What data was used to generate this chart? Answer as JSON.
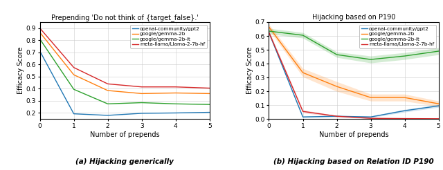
{
  "left": {
    "title": "Prepending 'Do not think of {target_false}.'",
    "xlabel": "Number of prepends",
    "ylabel": "Efficacy Score",
    "xlim": [
      0,
      5
    ],
    "ylim": [
      0.15,
      0.95
    ],
    "yticks": [
      0.2,
      0.3,
      0.4,
      0.5,
      0.6,
      0.7,
      0.8,
      0.9
    ],
    "xticks": [
      0,
      1,
      2,
      3,
      4,
      5
    ],
    "series": [
      {
        "label": "openai-community/gpt2",
        "color": "#1f77b4",
        "x": [
          0,
          1,
          2,
          3,
          4,
          5
        ],
        "y": [
          0.71,
          0.193,
          0.18,
          0.197,
          0.2,
          0.205
        ],
        "y_lower": [
          0.71,
          0.193,
          0.18,
          0.197,
          0.2,
          0.205
        ],
        "y_upper": [
          0.71,
          0.193,
          0.18,
          0.197,
          0.2,
          0.205
        ],
        "has_band": false
      },
      {
        "label": "google/gemma-2b",
        "color": "#ff7f0e",
        "x": [
          0,
          1,
          2,
          3,
          4,
          5
        ],
        "y": [
          0.865,
          0.515,
          0.385,
          0.36,
          0.365,
          0.36
        ],
        "y_lower": [
          0.865,
          0.515,
          0.385,
          0.36,
          0.365,
          0.36
        ],
        "y_upper": [
          0.865,
          0.515,
          0.385,
          0.36,
          0.365,
          0.36
        ],
        "has_band": false
      },
      {
        "label": "google/gemma-2b-it",
        "color": "#2ca02c",
        "x": [
          0,
          1,
          2,
          3,
          4,
          5
        ],
        "y": [
          0.81,
          0.395,
          0.275,
          0.285,
          0.275,
          0.27
        ],
        "y_lower": [
          0.81,
          0.395,
          0.275,
          0.285,
          0.275,
          0.27
        ],
        "y_upper": [
          0.81,
          0.395,
          0.275,
          0.285,
          0.275,
          0.27
        ],
        "has_band": false
      },
      {
        "label": "meta-llama/Llama-2-7b-hf",
        "color": "#d62728",
        "x": [
          0,
          1,
          2,
          3,
          4,
          5
        ],
        "y": [
          0.9,
          0.575,
          0.44,
          0.415,
          0.415,
          0.405
        ],
        "y_lower": [
          0.9,
          0.575,
          0.44,
          0.415,
          0.415,
          0.405
        ],
        "y_upper": [
          0.9,
          0.575,
          0.44,
          0.415,
          0.415,
          0.405
        ],
        "has_band": false
      }
    ],
    "caption": "(a) Hijacking generically"
  },
  "right": {
    "title": "Hijacking based on P190",
    "xlabel": "Number of prepends",
    "ylabel": "Efficacy Score",
    "xlim": [
      0,
      5
    ],
    "ylim": [
      0.0,
      0.7
    ],
    "yticks": [
      0.0,
      0.1,
      0.2,
      0.3,
      0.4,
      0.5,
      0.6,
      0.7
    ],
    "xticks": [
      0,
      1,
      2,
      3,
      4,
      5
    ],
    "series": [
      {
        "label": "openai-community/gpt2",
        "color": "#1f77b4",
        "x": [
          0,
          1,
          2,
          3,
          4,
          5
        ],
        "y": [
          0.625,
          0.015,
          0.02,
          0.015,
          0.06,
          0.095
        ],
        "y_lower": [
          0.615,
          0.01,
          0.015,
          0.01,
          0.05,
          0.085
        ],
        "y_upper": [
          0.635,
          0.02,
          0.025,
          0.02,
          0.07,
          0.105
        ],
        "has_band": true
      },
      {
        "label": "google/gemma-2b",
        "color": "#ff7f0e",
        "x": [
          0,
          1,
          2,
          3,
          4,
          5
        ],
        "y": [
          0.665,
          0.335,
          0.235,
          0.155,
          0.155,
          0.11
        ],
        "y_lower": [
          0.645,
          0.305,
          0.2,
          0.13,
          0.13,
          0.09
        ],
        "y_upper": [
          0.685,
          0.365,
          0.27,
          0.18,
          0.18,
          0.13
        ],
        "has_band": true
      },
      {
        "label": "google/gemma-2b-it",
        "color": "#2ca02c",
        "x": [
          0,
          1,
          2,
          3,
          4,
          5
        ],
        "y": [
          0.635,
          0.605,
          0.465,
          0.43,
          0.455,
          0.49
        ],
        "y_lower": [
          0.615,
          0.585,
          0.445,
          0.405,
          0.43,
          0.465
        ],
        "y_upper": [
          0.655,
          0.625,
          0.485,
          0.455,
          0.48,
          0.515
        ],
        "has_band": true
      },
      {
        "label": "meta-llama/Llama-2-7b-hf",
        "color": "#d62728",
        "x": [
          0,
          1,
          2,
          3,
          4,
          5
        ],
        "y": [
          0.625,
          0.055,
          0.02,
          0.005,
          0.003,
          0.002
        ],
        "y_lower": [
          0.61,
          0.045,
          0.015,
          0.002,
          0.001,
          0.001
        ],
        "y_upper": [
          0.64,
          0.065,
          0.025,
          0.008,
          0.005,
          0.003
        ],
        "has_band": true
      }
    ],
    "caption": "(b) Hijacking based on Relation ID P190"
  }
}
